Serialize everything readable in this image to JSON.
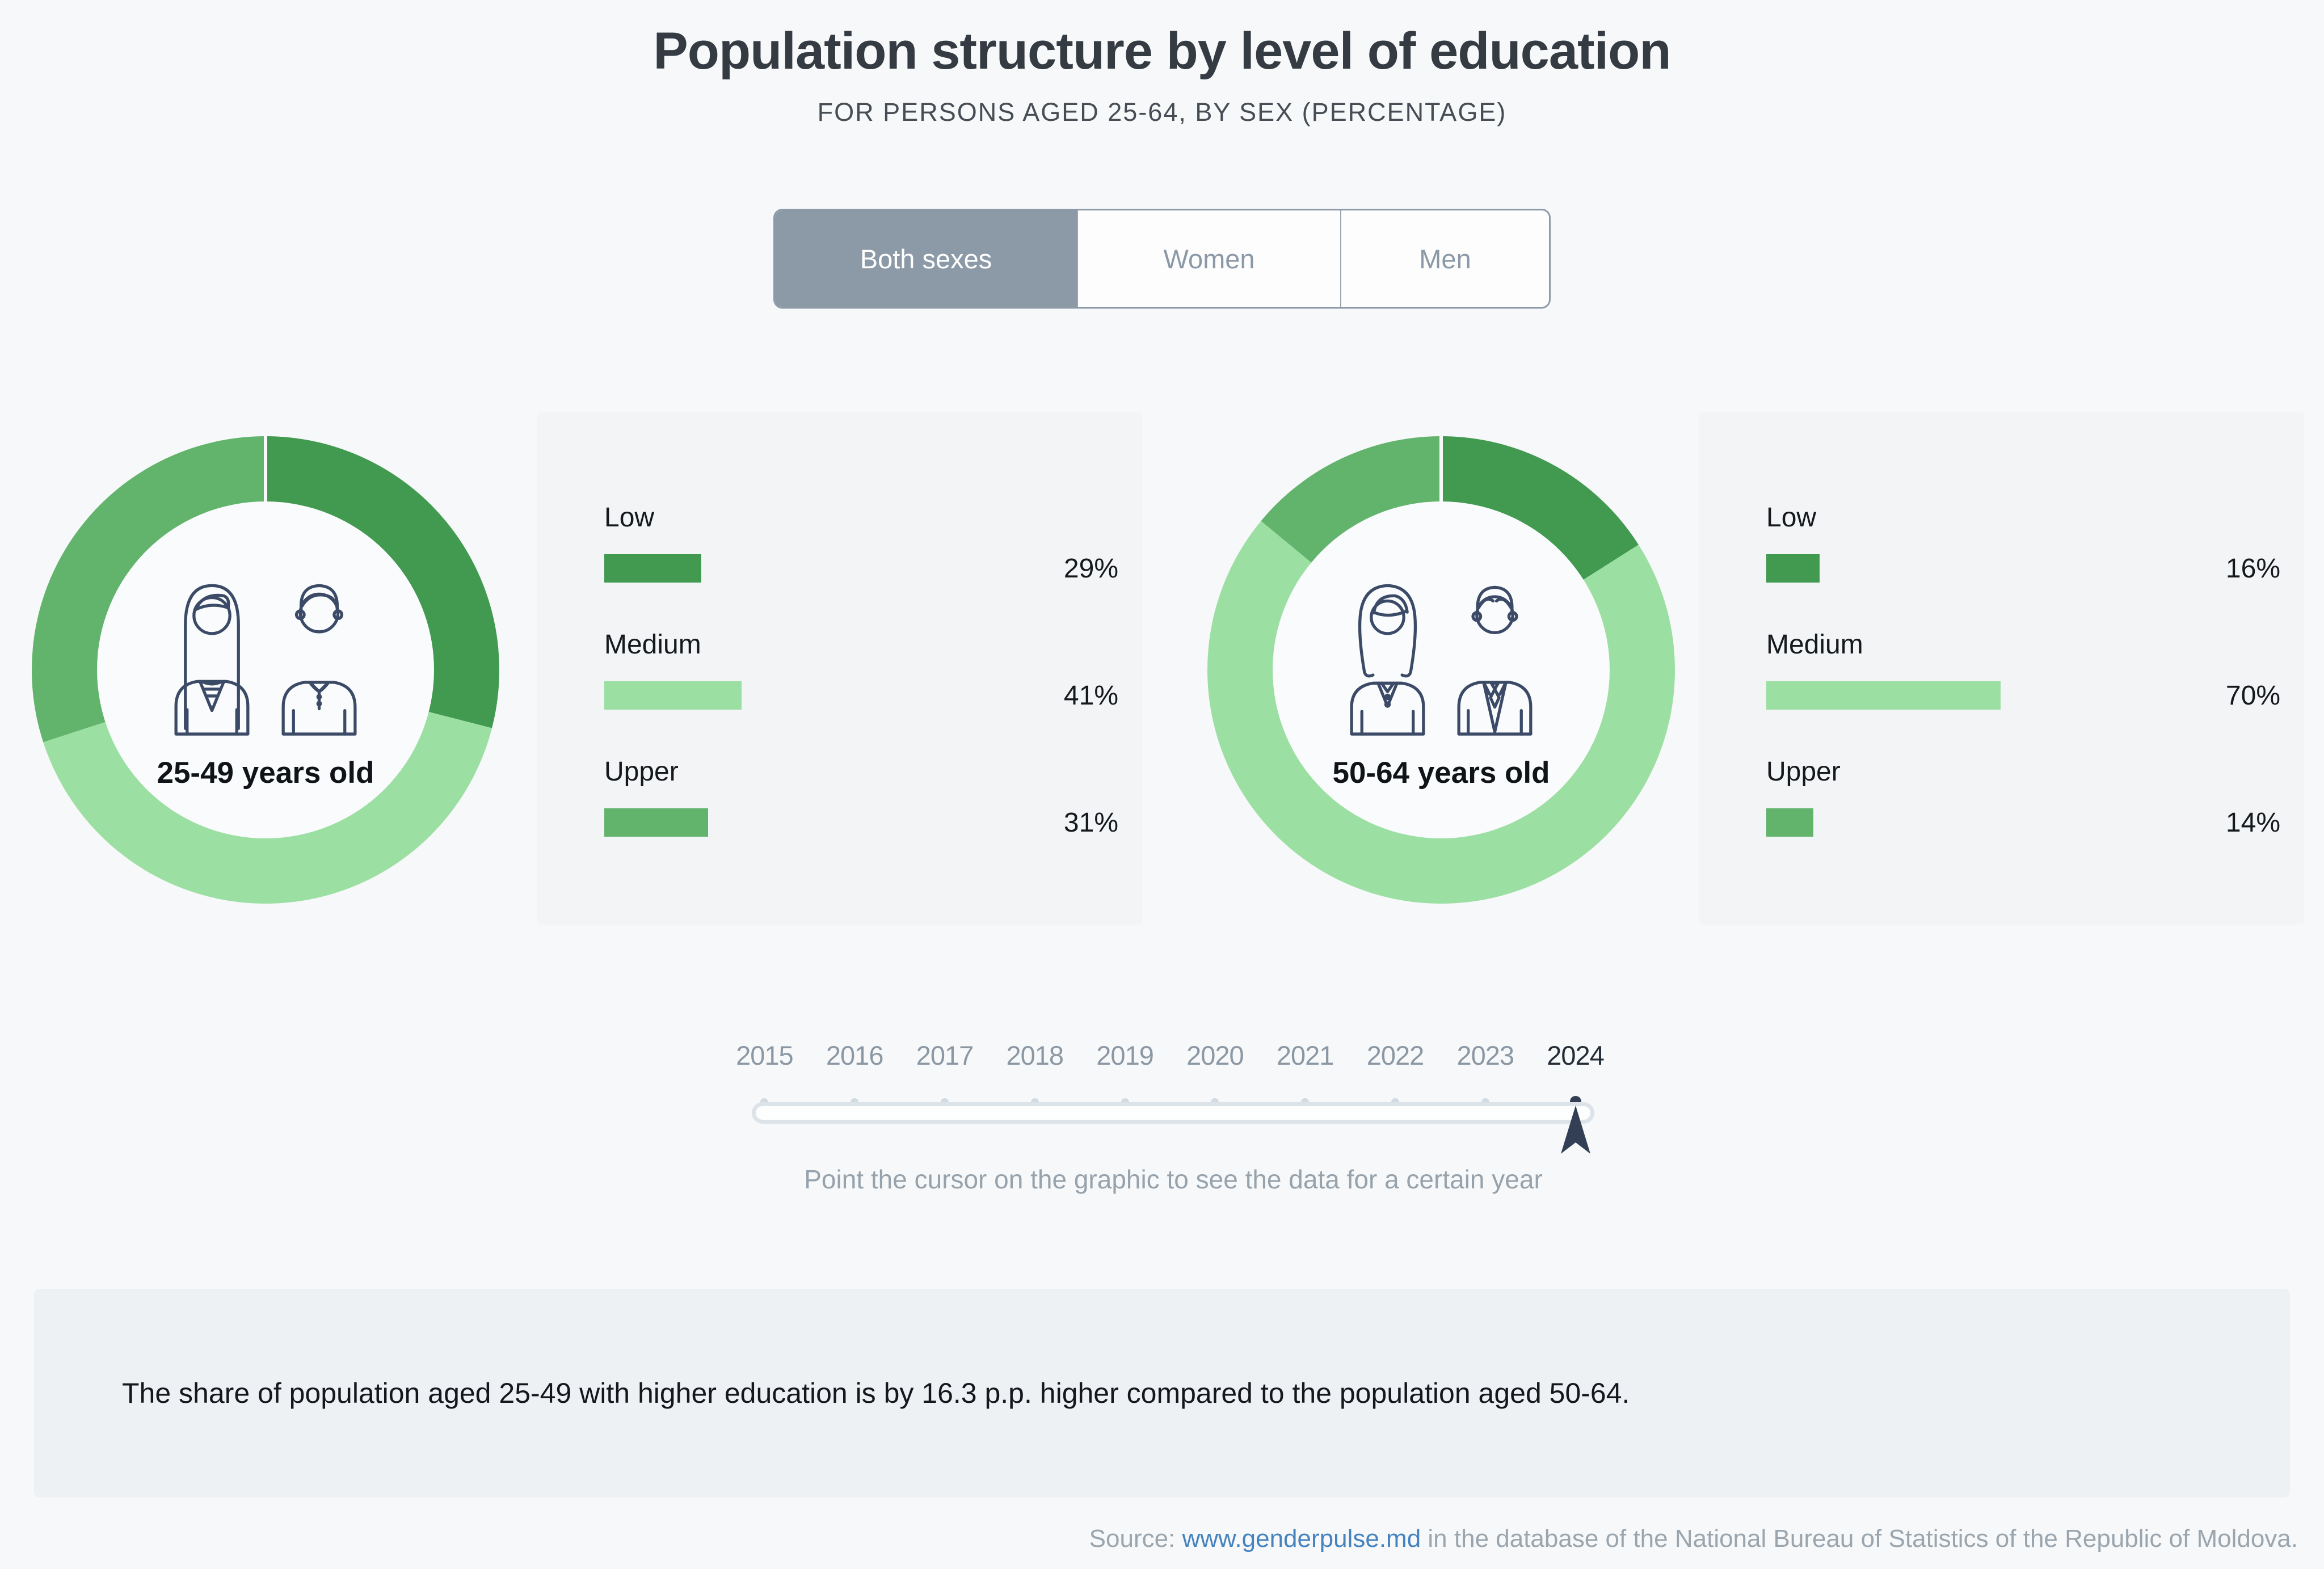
{
  "header": {
    "title": "Population structure by level of education",
    "subtitle": "FOR PERSONS AGED 25-64, BY SEX (PERCENTAGE)"
  },
  "tabs": [
    {
      "label": "Both sexes",
      "selected": true
    },
    {
      "label": "Women",
      "selected": false
    },
    {
      "label": "Men",
      "selected": false
    }
  ],
  "chart_data": [
    {
      "type": "pie",
      "variant": "donut",
      "title": "25-49 years old",
      "categories": [
        "Low",
        "Medium",
        "Upper"
      ],
      "values": [
        29,
        41,
        31
      ],
      "unit": "%",
      "colors": [
        "#429a51",
        "#9cdfa3",
        "#62b46d"
      ],
      "icon": "young-couple-icon",
      "legend_position": "right"
    },
    {
      "type": "pie",
      "variant": "donut",
      "title": "50-64 years old",
      "categories": [
        "Low",
        "Medium",
        "Upper"
      ],
      "values": [
        16,
        70,
        14
      ],
      "unit": "%",
      "colors": [
        "#429a51",
        "#9cdfa3",
        "#62b46d"
      ],
      "icon": "older-couple-icon",
      "legend_position": "right"
    }
  ],
  "timeline": {
    "years": [
      "2015",
      "2016",
      "2017",
      "2018",
      "2019",
      "2020",
      "2021",
      "2022",
      "2023",
      "2024"
    ],
    "selected": "2024",
    "hint": "Point the cursor on the graphic to see the data for a certain year"
  },
  "note": {
    "text": "The share of population aged 25-49 with higher education is by 16.3 p.p. higher compared to the population aged 50-64."
  },
  "source": {
    "prefix": "Source: ",
    "link": "www.genderpulse.md",
    "suffix": " in the database of the National Bureau of Statistics of the Republic of Moldova."
  },
  "colors": {
    "low_green": "#429a51",
    "medium_green": "#9cdfa3",
    "upper_green": "#62b46d",
    "selected_tab_bg": "#8c9aa7",
    "timeline_active": "#333f55",
    "link_blue": "#4583bf",
    "background": "#f7f8f9"
  }
}
